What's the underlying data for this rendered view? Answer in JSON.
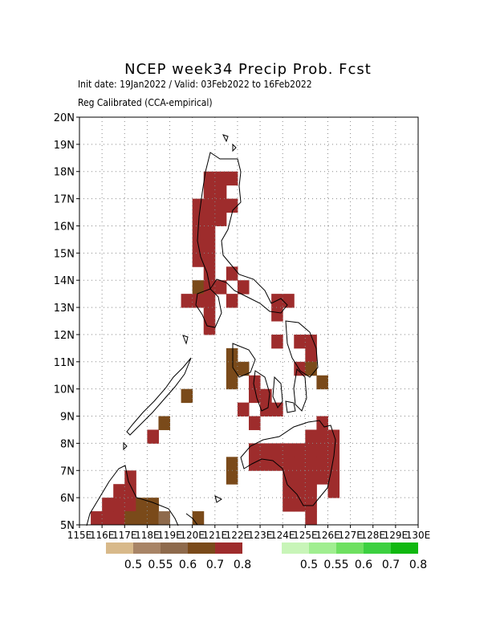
{
  "title": "NCEP week34 Precip Prob. Fcst",
  "subtitle1": "Init date: 19Jan2022 / Valid: 03Feb2022 to 16Feb2022",
  "subtitle2": "Reg Calibrated (CCA-empirical)",
  "lat_labels": [
    "5N",
    "6N",
    "7N",
    "8N",
    "9N",
    "10N",
    "11N",
    "12N",
    "13N",
    "14N",
    "15N",
    "16N",
    "17N",
    "18N",
    "19N",
    "20N"
  ],
  "lon_labels": [
    "115E",
    "116E",
    "117E",
    "118E",
    "119E",
    "120E",
    "121E",
    "122E",
    "123E",
    "124E",
    "125E",
    "126E",
    "127E",
    "128E",
    "129E",
    "130E"
  ],
  "dry_legend": {
    "colors": [
      "#D8B98A",
      "#A88466",
      "#8E6A4C",
      "#7A4A1A",
      "#9E2C2C"
    ],
    "labels": [
      "0.5",
      "0.55",
      "0.6",
      "0.7",
      "0.8"
    ]
  },
  "wet_legend": {
    "colors": [
      "#C8F5B8",
      "#A0EE90",
      "#6EE060",
      "#3CD040",
      "#10B810"
    ],
    "labels": [
      "0.5",
      "0.55",
      "0.6",
      "0.7",
      "0.8"
    ]
  },
  "cells": [
    {
      "row": 17.75,
      "col": 120.75,
      "cat": 4
    },
    {
      "row": 17.75,
      "col": 121.25,
      "cat": 4
    },
    {
      "row": 17.75,
      "col": 121.75,
      "cat": 4
    },
    {
      "row": 17.25,
      "col": 120.75,
      "cat": 4
    },
    {
      "row": 17.25,
      "col": 121.25,
      "cat": 4
    },
    {
      "row": 16.75,
      "col": 120.25,
      "cat": 4
    },
    {
      "row": 16.75,
      "col": 120.75,
      "cat": 4
    },
    {
      "row": 16.75,
      "col": 121.25,
      "cat": 4
    },
    {
      "row": 16.75,
      "col": 121.75,
      "cat": 4
    },
    {
      "row": 16.25,
      "col": 120.25,
      "cat": 4
    },
    {
      "row": 16.25,
      "col": 120.75,
      "cat": 4
    },
    {
      "row": 16.25,
      "col": 121.25,
      "cat": 4
    },
    {
      "row": 15.75,
      "col": 120.25,
      "cat": 4
    },
    {
      "row": 15.75,
      "col": 120.75,
      "cat": 4
    },
    {
      "row": 15.25,
      "col": 120.25,
      "cat": 4
    },
    {
      "row": 15.25,
      "col": 120.75,
      "cat": 4
    },
    {
      "row": 14.75,
      "col": 120.25,
      "cat": 4
    },
    {
      "row": 14.75,
      "col": 120.75,
      "cat": 4
    },
    {
      "row": 14.25,
      "col": 120.75,
      "cat": 4
    },
    {
      "row": 14.25,
      "col": 121.75,
      "cat": 4
    },
    {
      "row": 13.75,
      "col": 120.25,
      "cat": 3
    },
    {
      "row": 13.75,
      "col": 120.75,
      "cat": 4
    },
    {
      "row": 13.75,
      "col": 121.25,
      "cat": 4
    },
    {
      "row": 13.75,
      "col": 122.25,
      "cat": 4
    },
    {
      "row": 13.25,
      "col": 119.75,
      "cat": 4
    },
    {
      "row": 13.25,
      "col": 120.25,
      "cat": 4
    },
    {
      "row": 13.25,
      "col": 120.75,
      "cat": 4
    },
    {
      "row": 13.25,
      "col": 121.75,
      "cat": 4
    },
    {
      "row": 13.25,
      "col": 123.75,
      "cat": 4
    },
    {
      "row": 13.25,
      "col": 124.25,
      "cat": 4
    },
    {
      "row": 12.75,
      "col": 120.75,
      "cat": 4
    },
    {
      "row": 12.75,
      "col": 123.75,
      "cat": 4
    },
    {
      "row": 12.25,
      "col": 120.75,
      "cat": 4
    },
    {
      "row": 11.75,
      "col": 123.75,
      "cat": 4
    },
    {
      "row": 11.75,
      "col": 124.75,
      "cat": 4
    },
    {
      "row": 11.75,
      "col": 125.25,
      "cat": 4
    },
    {
      "row": 11.25,
      "col": 121.75,
      "cat": 3
    },
    {
      "row": 11.25,
      "col": 125.25,
      "cat": 4
    },
    {
      "row": 10.75,
      "col": 121.75,
      "cat": 3
    },
    {
      "row": 10.75,
      "col": 122.25,
      "cat": 3
    },
    {
      "row": 10.75,
      "col": 124.75,
      "cat": 4
    },
    {
      "row": 10.75,
      "col": 125.25,
      "cat": 3
    },
    {
      "row": 10.25,
      "col": 121.75,
      "cat": 3
    },
    {
      "row": 10.25,
      "col": 122.75,
      "cat": 4
    },
    {
      "row": 10.25,
      "col": 125.75,
      "cat": 3
    },
    {
      "row": 9.75,
      "col": 119.75,
      "cat": 3
    },
    {
      "row": 9.75,
      "col": 122.75,
      "cat": 4
    },
    {
      "row": 9.75,
      "col": 123.25,
      "cat": 4
    },
    {
      "row": 9.25,
      "col": 122.25,
      "cat": 4
    },
    {
      "row": 9.25,
      "col": 123.25,
      "cat": 4
    },
    {
      "row": 9.25,
      "col": 123.75,
      "cat": 4
    },
    {
      "row": 8.75,
      "col": 118.75,
      "cat": 3
    },
    {
      "row": 8.75,
      "col": 122.75,
      "cat": 4
    },
    {
      "row": 8.75,
      "col": 125.75,
      "cat": 4
    },
    {
      "row": 8.25,
      "col": 118.25,
      "cat": 4
    },
    {
      "row": 8.25,
      "col": 125.25,
      "cat": 4
    },
    {
      "row": 8.25,
      "col": 125.75,
      "cat": 4
    },
    {
      "row": 8.25,
      "col": 126.25,
      "cat": 4
    },
    {
      "row": 7.75,
      "col": 122.75,
      "cat": 4
    },
    {
      "row": 7.75,
      "col": 123.25,
      "cat": 4
    },
    {
      "row": 7.75,
      "col": 123.75,
      "cat": 4
    },
    {
      "row": 7.75,
      "col": 124.25,
      "cat": 4
    },
    {
      "row": 7.75,
      "col": 124.75,
      "cat": 4
    },
    {
      "row": 7.75,
      "col": 125.25,
      "cat": 4
    },
    {
      "row": 7.75,
      "col": 125.75,
      "cat": 4
    },
    {
      "row": 7.75,
      "col": 126.25,
      "cat": 4
    },
    {
      "row": 7.25,
      "col": 121.75,
      "cat": 3
    },
    {
      "row": 7.25,
      "col": 122.75,
      "cat": 4
    },
    {
      "row": 7.25,
      "col": 123.25,
      "cat": 4
    },
    {
      "row": 7.25,
      "col": 123.75,
      "cat": 4
    },
    {
      "row": 7.25,
      "col": 124.25,
      "cat": 4
    },
    {
      "row": 7.25,
      "col": 124.75,
      "cat": 4
    },
    {
      "row": 7.25,
      "col": 125.25,
      "cat": 4
    },
    {
      "row": 7.25,
      "col": 125.75,
      "cat": 4
    },
    {
      "row": 7.25,
      "col": 126.25,
      "cat": 4
    },
    {
      "row": 6.75,
      "col": 117.25,
      "cat": 4
    },
    {
      "row": 6.75,
      "col": 121.75,
      "cat": 3
    },
    {
      "row": 6.75,
      "col": 124.25,
      "cat": 4
    },
    {
      "row": 6.75,
      "col": 124.75,
      "cat": 4
    },
    {
      "row": 6.75,
      "col": 125.25,
      "cat": 4
    },
    {
      "row": 6.75,
      "col": 125.75,
      "cat": 4
    },
    {
      "row": 6.75,
      "col": 126.25,
      "cat": 4
    },
    {
      "row": 6.25,
      "col": 116.75,
      "cat": 4
    },
    {
      "row": 6.25,
      "col": 117.25,
      "cat": 4
    },
    {
      "row": 6.25,
      "col": 124.25,
      "cat": 4
    },
    {
      "row": 6.25,
      "col": 124.75,
      "cat": 4
    },
    {
      "row": 6.25,
      "col": 125.25,
      "cat": 4
    },
    {
      "row": 6.25,
      "col": 126.25,
      "cat": 4
    },
    {
      "row": 5.75,
      "col": 116.25,
      "cat": 4
    },
    {
      "row": 5.75,
      "col": 116.75,
      "cat": 4
    },
    {
      "row": 5.75,
      "col": 117.25,
      "cat": 4
    },
    {
      "row": 5.75,
      "col": 124.25,
      "cat": 4
    },
    {
      "row": 5.75,
      "col": 124.75,
      "cat": 4
    },
    {
      "row": 5.75,
      "col": 125.25,
      "cat": 4
    },
    {
      "row": 5.25,
      "col": 116.25,
      "cat": 4
    },
    {
      "row": 5.25,
      "col": 116.75,
      "cat": 4
    },
    {
      "row": 5.25,
      "col": 117.25,
      "cat": 3
    },
    {
      "row": 5.25,
      "col": 117.75,
      "cat": 3
    },
    {
      "row": 5.25,
      "col": 118.25,
      "cat": 3
    },
    {
      "row": 5.25,
      "col": 125.25,
      "cat": 4
    },
    {
      "row": 5.25,
      "col": 115.75,
      "cat": 4
    },
    {
      "row": 5.25,
      "col": 120.25,
      "cat": 3
    },
    {
      "row": 5.75,
      "col": 117.75,
      "cat": 3
    },
    {
      "row": 5.75,
      "col": 118.25,
      "cat": 3
    },
    {
      "row": 5.25,
      "col": 118.75,
      "cat": 2
    }
  ]
}
